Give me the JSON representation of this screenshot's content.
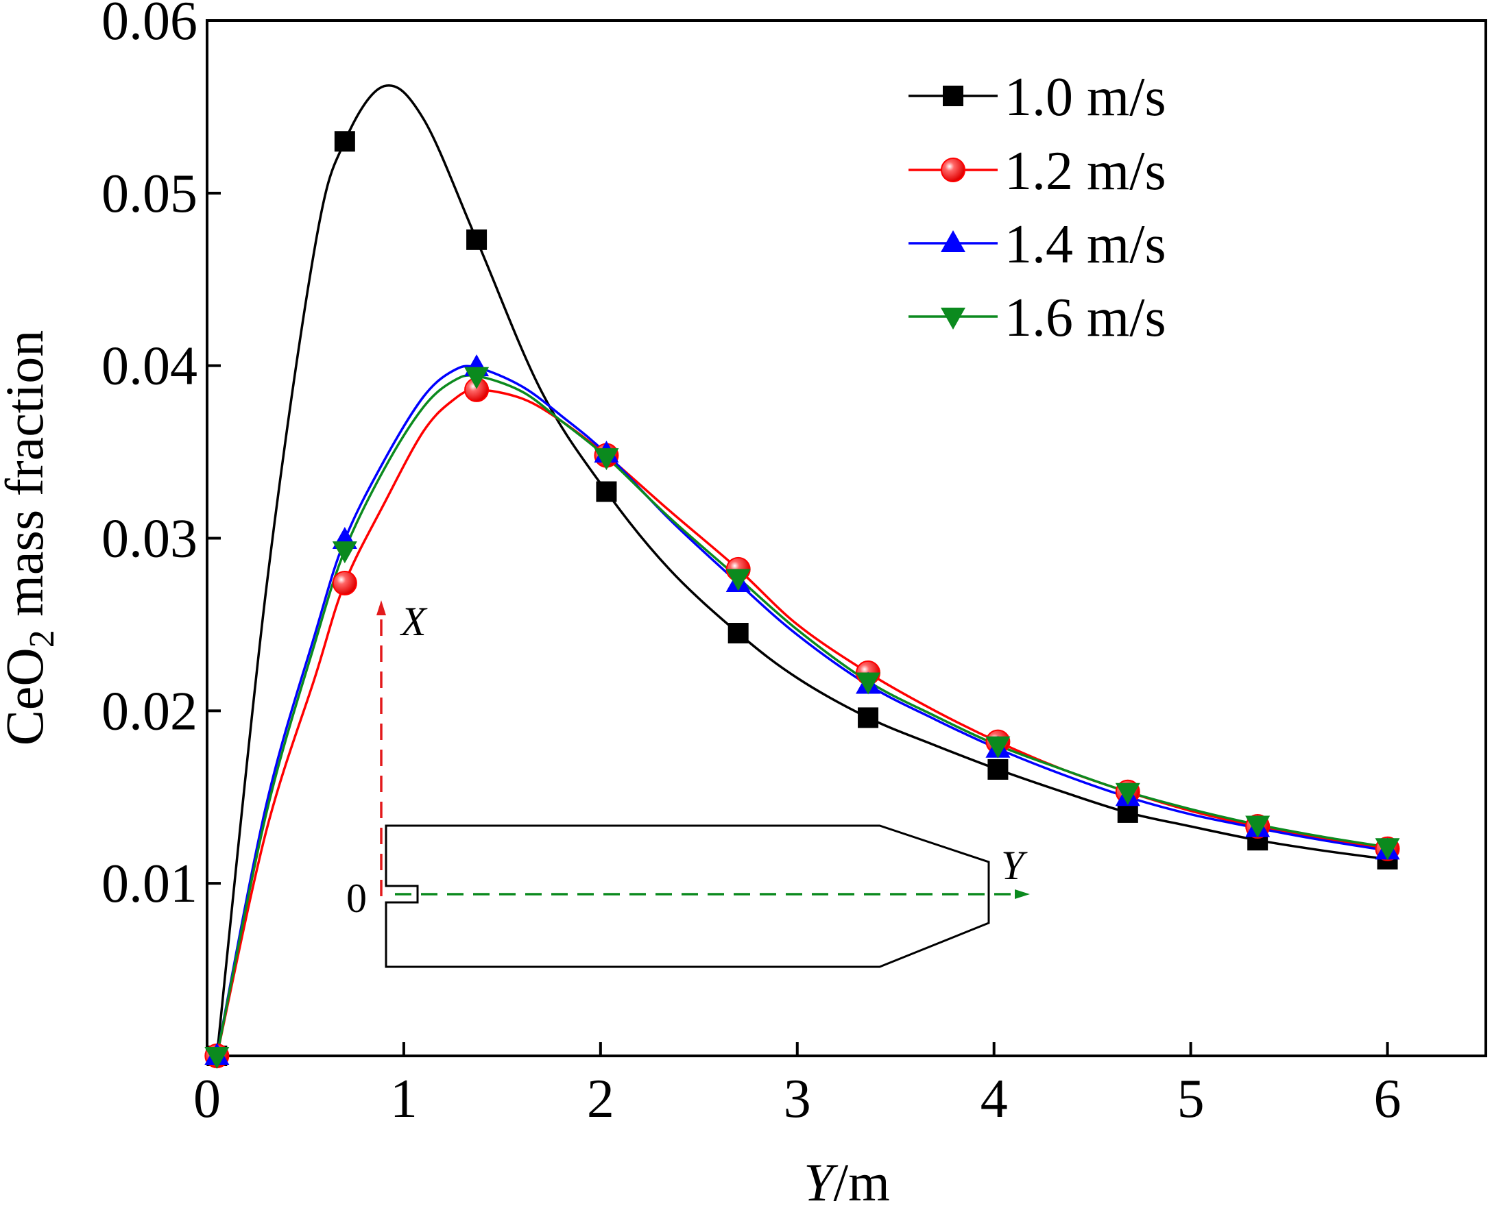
{
  "chart_data": {
    "type": "line",
    "xlabel": {
      "main": "Y",
      "unit": "/m"
    },
    "ylabel": {
      "prefix": "CeO",
      "sub": "2",
      "suffix": " mass fraction"
    },
    "xlim": [
      0,
      6.5
    ],
    "ylim": [
      0,
      0.06
    ],
    "xticks": [
      0,
      1,
      2,
      3,
      4,
      5,
      6
    ],
    "xtick_labels": [
      "0",
      "1",
      "2",
      "3",
      "4",
      "5",
      "6"
    ],
    "yticks": [
      0.01,
      0.02,
      0.03,
      0.04,
      0.05,
      0.06
    ],
    "ytick_labels": [
      "0.01",
      "0.02",
      "0.03",
      "0.04",
      "0.05",
      "0.06"
    ],
    "grid": false,
    "legend_position": "top-right",
    "x": [
      0.05,
      0.7,
      1.37,
      2.03,
      2.7,
      3.36,
      4.02,
      4.68,
      5.34,
      6.0
    ],
    "series": [
      {
        "name": "1.0 m/s",
        "color": "#000000",
        "marker": "square",
        "values": [
          0.0,
          0.053,
          0.0473,
          0.0327,
          0.0245,
          0.0196,
          0.0166,
          0.0141,
          0.0125,
          0.0114
        ],
        "curve": [
          [
            0.05,
            0.0
          ],
          [
            0.3,
            0.027
          ],
          [
            0.55,
            0.047
          ],
          [
            0.7,
            0.053
          ],
          [
            0.9,
            0.0562
          ],
          [
            1.1,
            0.0543
          ],
          [
            1.37,
            0.0473
          ],
          [
            1.7,
            0.0385
          ],
          [
            2.03,
            0.0327
          ],
          [
            2.35,
            0.0282
          ],
          [
            2.7,
            0.0245
          ],
          [
            3.0,
            0.0219
          ],
          [
            3.36,
            0.0196
          ],
          [
            3.7,
            0.018
          ],
          [
            4.02,
            0.0166
          ],
          [
            4.35,
            0.0153
          ],
          [
            4.68,
            0.0141
          ],
          [
            5.0,
            0.0133
          ],
          [
            5.34,
            0.0125
          ],
          [
            5.67,
            0.0119
          ],
          [
            6.0,
            0.0114
          ]
        ]
      },
      {
        "name": "1.2 m/s",
        "color": "#ff0000",
        "marker": "circle",
        "values": [
          0.0,
          0.0274,
          0.0386,
          0.0348,
          0.0282,
          0.0222,
          0.0182,
          0.0153,
          0.0133,
          0.012
        ],
        "curve": [
          [
            0.05,
            0.0
          ],
          [
            0.3,
            0.013
          ],
          [
            0.55,
            0.022
          ],
          [
            0.7,
            0.0274
          ],
          [
            0.9,
            0.032
          ],
          [
            1.1,
            0.0362
          ],
          [
            1.25,
            0.038
          ],
          [
            1.37,
            0.0386
          ],
          [
            1.6,
            0.0381
          ],
          [
            1.8,
            0.0368
          ],
          [
            2.03,
            0.0348
          ],
          [
            2.35,
            0.0316
          ],
          [
            2.7,
            0.0282
          ],
          [
            3.0,
            0.025
          ],
          [
            3.36,
            0.0222
          ],
          [
            3.7,
            0.02
          ],
          [
            4.02,
            0.0182
          ],
          [
            4.35,
            0.0166
          ],
          [
            4.68,
            0.0153
          ],
          [
            5.0,
            0.0142
          ],
          [
            5.34,
            0.0133
          ],
          [
            5.67,
            0.0126
          ],
          [
            6.0,
            0.012
          ]
        ]
      },
      {
        "name": "1.4 m/s",
        "color": "#0000ff",
        "marker": "triangle-up",
        "values": [
          0.0,
          0.0299,
          0.0399,
          0.0349,
          0.0274,
          0.0215,
          0.0178,
          0.015,
          0.0132,
          0.0119
        ],
        "curve": [
          [
            0.05,
            0.0
          ],
          [
            0.3,
            0.0145
          ],
          [
            0.55,
            0.0245
          ],
          [
            0.7,
            0.0299
          ],
          [
            0.9,
            0.0345
          ],
          [
            1.1,
            0.0382
          ],
          [
            1.25,
            0.0397
          ],
          [
            1.37,
            0.0399
          ],
          [
            1.6,
            0.0388
          ],
          [
            1.8,
            0.0371
          ],
          [
            2.03,
            0.0349
          ],
          [
            2.35,
            0.0311
          ],
          [
            2.7,
            0.0274
          ],
          [
            3.0,
            0.0244
          ],
          [
            3.36,
            0.0215
          ],
          [
            3.7,
            0.0195
          ],
          [
            4.02,
            0.0178
          ],
          [
            4.35,
            0.0163
          ],
          [
            4.68,
            0.015
          ],
          [
            5.0,
            0.014
          ],
          [
            5.34,
            0.0132
          ],
          [
            5.67,
            0.0125
          ],
          [
            6.0,
            0.0119
          ]
        ]
      },
      {
        "name": "1.6 m/s",
        "color": "#0b8a1e",
        "marker": "triangle-down",
        "values": [
          0.0,
          0.0293,
          0.0394,
          0.0347,
          0.0277,
          0.0217,
          0.018,
          0.0153,
          0.0134,
          0.0121
        ],
        "curve": [
          [
            0.05,
            0.0
          ],
          [
            0.3,
            0.014
          ],
          [
            0.55,
            0.024
          ],
          [
            0.7,
            0.0293
          ],
          [
            0.9,
            0.034
          ],
          [
            1.1,
            0.0376
          ],
          [
            1.25,
            0.0391
          ],
          [
            1.37,
            0.0394
          ],
          [
            1.6,
            0.0385
          ],
          [
            1.8,
            0.0368
          ],
          [
            2.03,
            0.0347
          ],
          [
            2.35,
            0.0312
          ],
          [
            2.7,
            0.0277
          ],
          [
            3.0,
            0.0247
          ],
          [
            3.36,
            0.0217
          ],
          [
            3.7,
            0.0197
          ],
          [
            4.02,
            0.018
          ],
          [
            4.35,
            0.0166
          ],
          [
            4.68,
            0.0153
          ],
          [
            5.0,
            0.0143
          ],
          [
            5.34,
            0.0134
          ],
          [
            5.67,
            0.0127
          ],
          [
            6.0,
            0.0121
          ]
        ]
      }
    ]
  },
  "inset": {
    "origin_label": "0",
    "x_axis_label": "X",
    "y_axis_label": "Y",
    "x_arrow_color": "#e31a1c",
    "y_arrow_color": "#0b8a1e"
  }
}
